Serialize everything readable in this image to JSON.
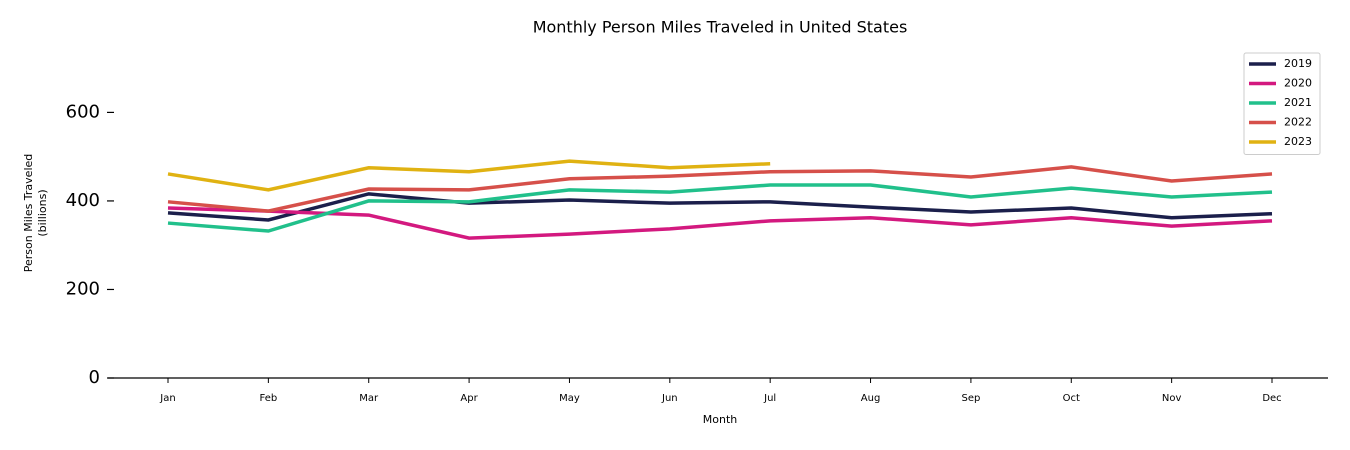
{
  "chart_data": {
    "type": "line",
    "title": "Monthly Person Miles Traveled in United States",
    "xlabel": "Month",
    "ylabel": [
      "Person Miles Traveled",
      "(billions)"
    ],
    "categories": [
      "Jan",
      "Feb",
      "Mar",
      "Apr",
      "May",
      "Jun",
      "Jul",
      "Aug",
      "Sep",
      "Oct",
      "Nov",
      "Dec"
    ],
    "series": [
      {
        "name": "2019",
        "color": "#1b1f4b",
        "values": [
          373,
          357,
          416,
          395,
          402,
          395,
          398,
          386,
          375,
          384,
          362,
          371
        ]
      },
      {
        "name": "2020",
        "color": "#d3197f",
        "values": [
          384,
          377,
          368,
          316,
          325,
          337,
          355,
          362,
          346,
          362,
          343,
          355
        ]
      },
      {
        "name": "2021",
        "color": "#21c08b",
        "values": [
          350,
          332,
          400,
          398,
          425,
          420,
          436,
          436,
          409,
          429,
          409,
          420
        ]
      },
      {
        "name": "2022",
        "color": "#d6504a",
        "values": [
          398,
          377,
          427,
          425,
          450,
          456,
          466,
          468,
          454,
          477,
          445,
          461
        ]
      },
      {
        "name": "2023",
        "color": "#e0b212",
        "values": [
          461,
          425,
          475,
          466,
          490,
          475,
          484,
          null,
          null,
          null,
          null,
          null
        ]
      }
    ],
    "ylim": [
      0,
      750
    ],
    "yticks": [
      0,
      200,
      400,
      600
    ],
    "legend": "upper right"
  }
}
